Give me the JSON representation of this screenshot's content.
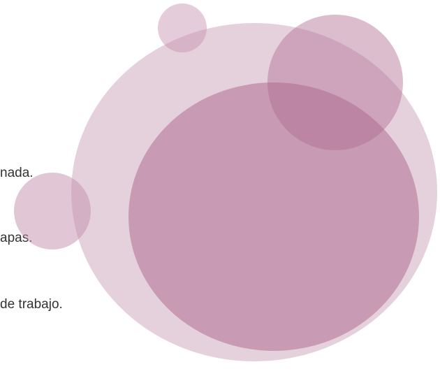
{
  "lines": [
    "nada.",
    "apas.",
    "de trabajo."
  ]
}
